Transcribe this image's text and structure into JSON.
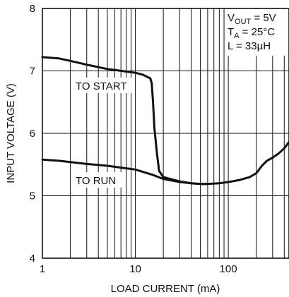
{
  "chart_data": {
    "type": "line",
    "title": "",
    "xlabel": "LOAD CURRENT (mA)",
    "ylabel": "INPUT VOLTAGE (V)",
    "xscale": "log",
    "xlim": [
      1,
      450
    ],
    "ylim": [
      4,
      8
    ],
    "grid": true,
    "x_ticks": [
      {
        "value": 1,
        "label": "1"
      },
      {
        "value": 10,
        "label": "10"
      },
      {
        "value": 100,
        "label": "100"
      }
    ],
    "y_ticks": [
      {
        "value": 4,
        "label": "4"
      },
      {
        "value": 5,
        "label": "5"
      },
      {
        "value": 6,
        "label": "6"
      },
      {
        "value": 7,
        "label": "7"
      },
      {
        "value": 8,
        "label": "8"
      }
    ],
    "annotations": {
      "vout": {
        "main": "V",
        "sub": "OUT",
        "rest": " = 5V"
      },
      "ta": {
        "main": "T",
        "sub": "A",
        "rest": " = 25°C"
      },
      "l": {
        "main": "L = 33µH"
      }
    },
    "series": [
      {
        "name": "TO START",
        "x": [
          1,
          1.5,
          2,
          3,
          5,
          8,
          10,
          12,
          14.5,
          15,
          15.5,
          16,
          17,
          18,
          20,
          25,
          30,
          40,
          50,
          60
        ],
        "y": [
          7.22,
          7.2,
          7.16,
          7.1,
          7.03,
          6.99,
          6.97,
          6.94,
          6.88,
          6.8,
          6.5,
          6.1,
          5.7,
          5.4,
          5.3,
          5.26,
          5.23,
          5.2,
          5.19,
          5.19
        ]
      },
      {
        "name": "TO RUN",
        "x": [
          1,
          1.5,
          2,
          3,
          5,
          8,
          10,
          15,
          20,
          30,
          40,
          50,
          60,
          80,
          100,
          130,
          170,
          200,
          230,
          260,
          300,
          350,
          400,
          450
        ],
        "y": [
          5.58,
          5.56,
          5.54,
          5.51,
          5.48,
          5.44,
          5.42,
          5.34,
          5.27,
          5.22,
          5.2,
          5.19,
          5.19,
          5.2,
          5.22,
          5.25,
          5.3,
          5.36,
          5.48,
          5.56,
          5.61,
          5.68,
          5.76,
          5.86
        ]
      }
    ]
  }
}
